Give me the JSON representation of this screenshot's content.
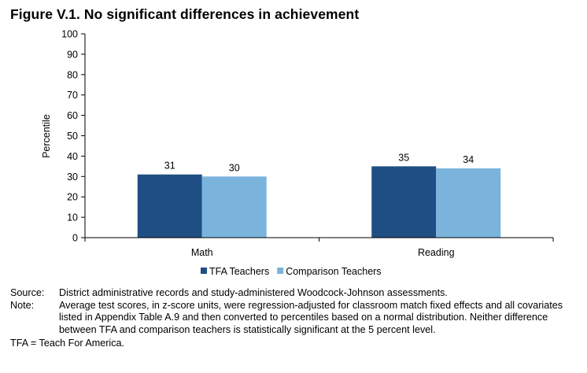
{
  "figure": {
    "title": "Figure V.1. No significant differences in achievement"
  },
  "chart_data": {
    "type": "bar",
    "categories": [
      "Math",
      "Reading"
    ],
    "series": [
      {
        "name": "TFA Teachers",
        "values": [
          31,
          35
        ],
        "color": "#1f4e84"
      },
      {
        "name": "Comparison Teachers",
        "values": [
          30,
          34
        ],
        "color": "#7ab4dc"
      }
    ],
    "title": "",
    "xlabel": "",
    "ylabel": "Percentile",
    "ylim": [
      0,
      100
    ],
    "yticks": [
      0,
      10,
      20,
      30,
      40,
      50,
      60,
      70,
      80,
      90,
      100
    ],
    "legend_position": "bottom",
    "grid": false,
    "data_labels": true
  },
  "notes": {
    "source_label": "Source:",
    "source_text": "District administrative records and study-administered Woodcock-Johnson assessments.",
    "note_label": "Note:",
    "note_text": "Average test scores, in z-score units, were regression-adjusted for classroom match fixed effects and all covariates listed in Appendix Table A.9 and then converted to percentiles based on a normal distribution. Neither difference between TFA and comparison teachers is statistically significant at the 5 percent level.",
    "footer": "TFA = Teach For America."
  }
}
